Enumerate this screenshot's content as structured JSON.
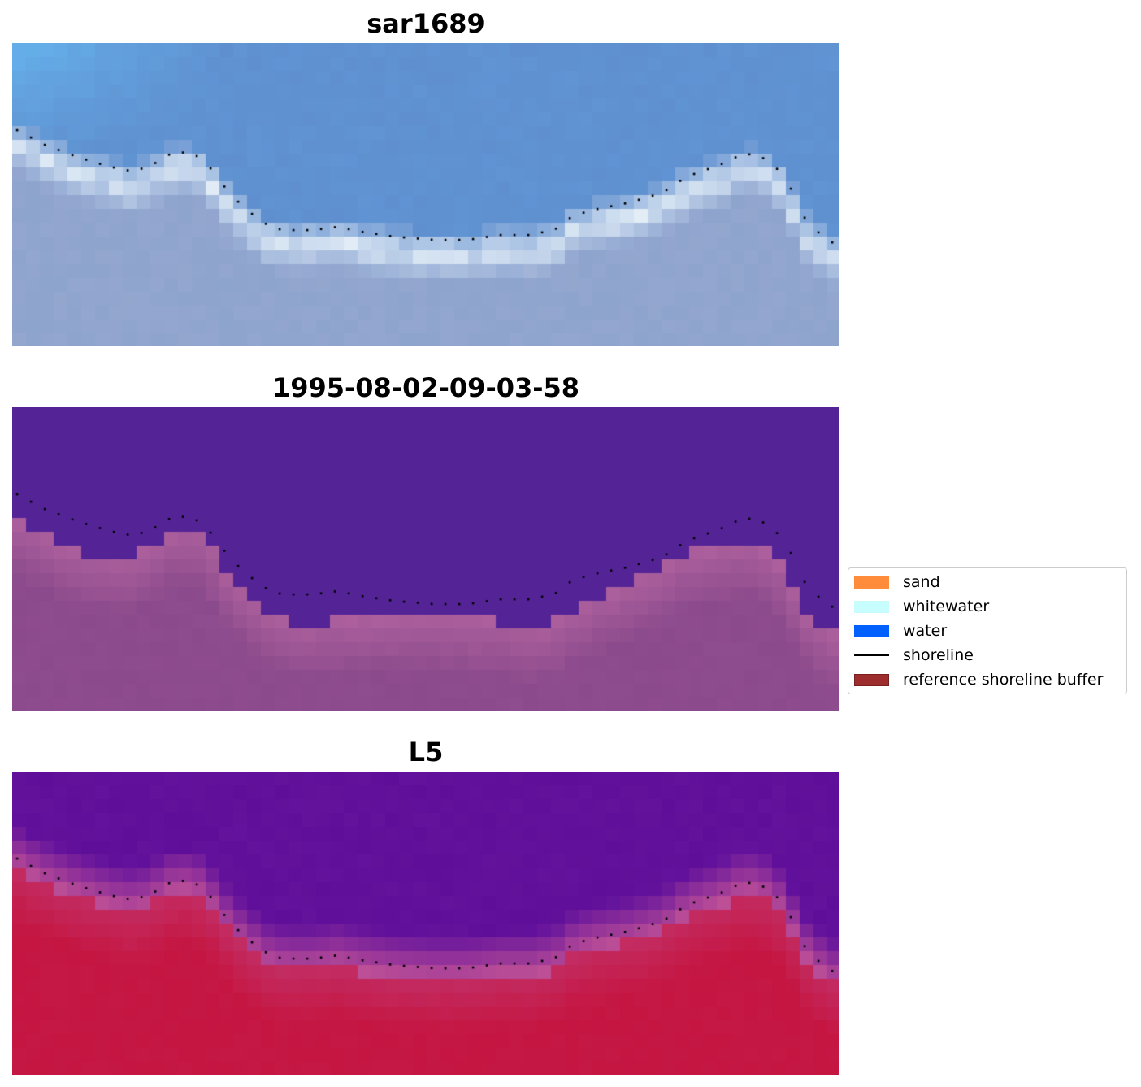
{
  "panels": [
    {
      "title": "sar1689",
      "style": "rgb"
    },
    {
      "title": "1995-08-02-09-03-58",
      "style": "classification"
    },
    {
      "title": "L5",
      "style": "index"
    }
  ],
  "legend": {
    "items": [
      {
        "label": "sand",
        "kind": "patch",
        "color": "#ff8c3a"
      },
      {
        "label": "whitewater",
        "kind": "patch",
        "color": "#c8fdfd"
      },
      {
        "label": "water",
        "kind": "patch",
        "color": "#0061ff"
      },
      {
        "label": "shoreline",
        "kind": "line",
        "color": "#000000"
      },
      {
        "label": "reference shoreline buffer",
        "kind": "patch",
        "color": "#9e2d2d"
      }
    ]
  },
  "colors": {
    "rgb_sky": "#5f8fcf",
    "rgb_foam": "#eef6fb",
    "rgb_land": "#93a6cf",
    "class_water": "#542497",
    "class_land": "#8a4a8c",
    "index_water": "#63129c",
    "index_land": "#c51845",
    "shoreline": "#000000"
  }
}
